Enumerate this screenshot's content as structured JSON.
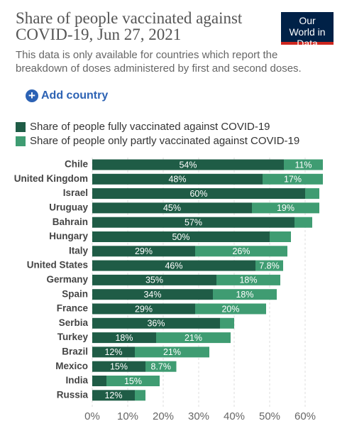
{
  "chart_data": {
    "type": "stacked-bar-horizontal",
    "title": "Share of people vaccinated against COVID-19, Jun 27, 2021",
    "subtitle": "This data is only available for countries which report the breakdown of doses administered by first and second doses.",
    "logo": "Our World in Data",
    "add_button": "Add country",
    "categories": [
      "Chile",
      "United Kingdom",
      "Israel",
      "Uruguay",
      "Bahrain",
      "Hungary",
      "Italy",
      "United States",
      "Germany",
      "Spain",
      "France",
      "Serbia",
      "Turkey",
      "Brazil",
      "Mexico",
      "India",
      "Russia"
    ],
    "series": [
      {
        "name": "Share of people fully vaccinated against COVID-19",
        "color": "#1f5c46",
        "values": [
          54,
          48,
          60,
          45,
          57,
          50,
          29,
          46,
          35,
          34,
          29,
          36,
          18,
          12,
          15,
          4,
          12
        ],
        "value_labels": [
          "54%",
          "48%",
          "60%",
          "45%",
          "57%",
          "50%",
          "29%",
          "46%",
          "35%",
          "34%",
          "29%",
          "36%",
          "18%",
          "12%",
          "15%",
          null,
          "12%"
        ]
      },
      {
        "name": "Share of people only partly vaccinated against COVID-19",
        "color": "#3f9c72",
        "values": [
          11,
          17,
          4,
          19,
          5,
          6,
          26,
          7.8,
          18,
          18,
          20,
          4,
          21,
          21,
          8.7,
          15,
          3
        ],
        "value_labels": [
          "11%",
          "17%",
          null,
          "19%",
          null,
          null,
          "26%",
          "7.8%",
          "18%",
          "18%",
          "20%",
          null,
          "21%",
          "21%",
          "8.7%",
          "15%",
          null
        ]
      }
    ],
    "xlim": [
      0,
      66
    ],
    "xticks": [
      {
        "value": 0,
        "label": "0%"
      },
      {
        "value": 10,
        "label": "10%"
      },
      {
        "value": 20,
        "label": "20%"
      },
      {
        "value": 30,
        "label": "30%"
      },
      {
        "value": 40,
        "label": "40%"
      },
      {
        "value": 50,
        "label": "50%"
      },
      {
        "value": 60,
        "label": "60%"
      }
    ],
    "grid": true
  }
}
